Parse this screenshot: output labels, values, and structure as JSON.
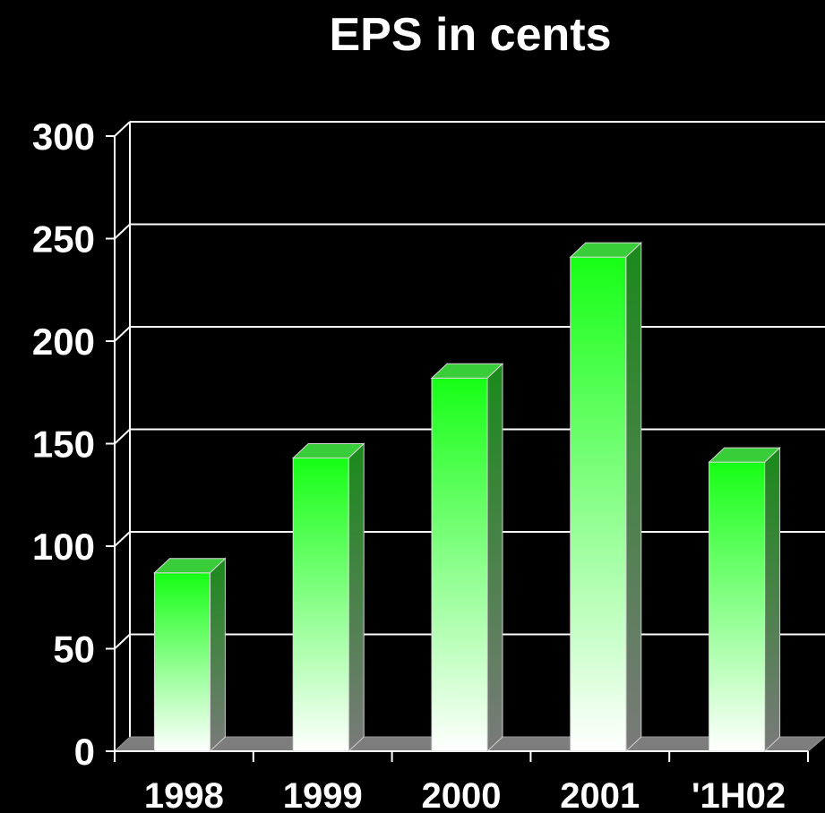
{
  "chart_data": {
    "type": "bar",
    "title": "EPS in cents",
    "xlabel": "",
    "ylabel": "",
    "categories": [
      "1998",
      "1999",
      "2000",
      "2001",
      "'1H02"
    ],
    "values": [
      87,
      143,
      182,
      241,
      141
    ],
    "ylim": [
      0,
      300
    ],
    "yticks": [
      "0",
      "50",
      "100",
      "150",
      "200",
      "250",
      "300"
    ],
    "grid": true,
    "style": "3d-column",
    "colors": {
      "background": "#000000",
      "bar_top": "#16ff16",
      "bar_bottom": "#ffffff",
      "bar_side_top": "#1a8a1a",
      "bar_side_bottom": "#7a7a7a",
      "bar_cap": "#3acd3a",
      "floor": "#7d7d7d",
      "grid": "#ffffff",
      "text": "#ffffff"
    }
  }
}
